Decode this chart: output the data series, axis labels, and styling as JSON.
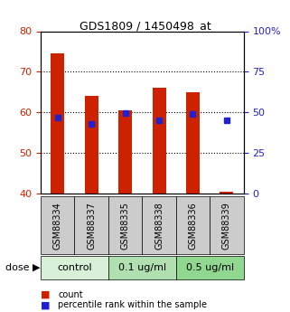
{
  "title": "GDS1809 / 1450498_at",
  "samples": [
    "GSM88334",
    "GSM88337",
    "GSM88335",
    "GSM88338",
    "GSM88336",
    "GSM88339"
  ],
  "red_values": [
    74.5,
    64.0,
    60.5,
    66.0,
    65.0,
    40.5
  ],
  "blue_values": [
    47.0,
    43.0,
    49.5,
    45.0,
    49.0,
    45.0
  ],
  "ylim_left": [
    40,
    80
  ],
  "ylim_right": [
    0,
    100
  ],
  "yticks_left": [
    40,
    50,
    60,
    70,
    80
  ],
  "yticks_right": [
    0,
    25,
    50,
    75,
    100
  ],
  "ytick_labels_right": [
    "0",
    "25",
    "50",
    "75",
    "100%"
  ],
  "groups": [
    {
      "label": "control",
      "samples": [
        "GSM88334",
        "GSM88337"
      ],
      "color": "#d8f0d8"
    },
    {
      "label": "0.1 ug/ml",
      "samples": [
        "GSM88335",
        "GSM88338"
      ],
      "color": "#b0e0b0"
    },
    {
      "label": "0.5 ug/ml",
      "samples": [
        "GSM88336",
        "GSM88339"
      ],
      "color": "#90d890"
    }
  ],
  "bar_color": "#cc2200",
  "dot_color": "#2222cc",
  "bar_width": 0.4,
  "legend_count_label": "count",
  "legend_pct_label": "percentile rank within the sample",
  "dose_label": "dose",
  "left_tick_color": "#cc2200",
  "right_tick_color": "#2222cc",
  "sample_label_bg": "#cccccc",
  "group_label_fontsize": 8,
  "sample_label_fontsize": 7,
  "hgrid_lines": [
    50,
    60,
    70
  ]
}
